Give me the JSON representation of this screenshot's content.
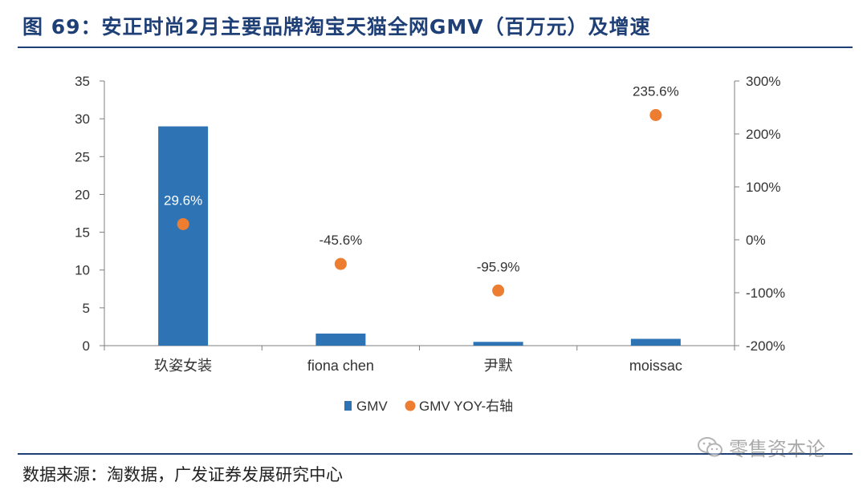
{
  "figure": {
    "title": "图 69：安正时尚2月主要品牌淘宝天猫全网GMV（百万元）及增速",
    "source": "数据来源：淘数据，广发证券发展研究中心",
    "watermark": "零售资本论"
  },
  "colors": {
    "bar": "#2e74b5",
    "dot": "#ed7d31",
    "rule": "#1f3f77",
    "axis": "#7f7f7f",
    "text": "#333333"
  },
  "chart_data": {
    "type": "bar",
    "categories": [
      "玖姿女装",
      "fiona chen",
      "尹默",
      "moissac"
    ],
    "series": [
      {
        "name": "GMV",
        "type": "bar",
        "axis": "left",
        "values": [
          29.0,
          1.6,
          0.5,
          0.9
        ]
      },
      {
        "name": "GMV YOY-右轴",
        "type": "scatter",
        "axis": "right",
        "values": [
          29.6,
          -45.6,
          -95.9,
          235.6
        ],
        "labels": [
          "29.6%",
          "-45.6%",
          "-95.9%",
          "235.6%"
        ]
      }
    ],
    "ylim": [
      0,
      35
    ],
    "y_ticks": [
      0,
      5,
      10,
      15,
      20,
      25,
      30,
      35
    ],
    "y2lim": [
      -200,
      300
    ],
    "y2_ticks": [
      -200,
      -100,
      0,
      100,
      200,
      300
    ],
    "y2_tick_labels": [
      "-200%",
      "-100%",
      "0%",
      "100%",
      "200%",
      "300%"
    ],
    "xlabel": "",
    "ylabel": "",
    "y2label": "",
    "legend": [
      "GMV",
      "GMV YOY-右轴"
    ],
    "legend_position": "bottom",
    "grid": false
  }
}
